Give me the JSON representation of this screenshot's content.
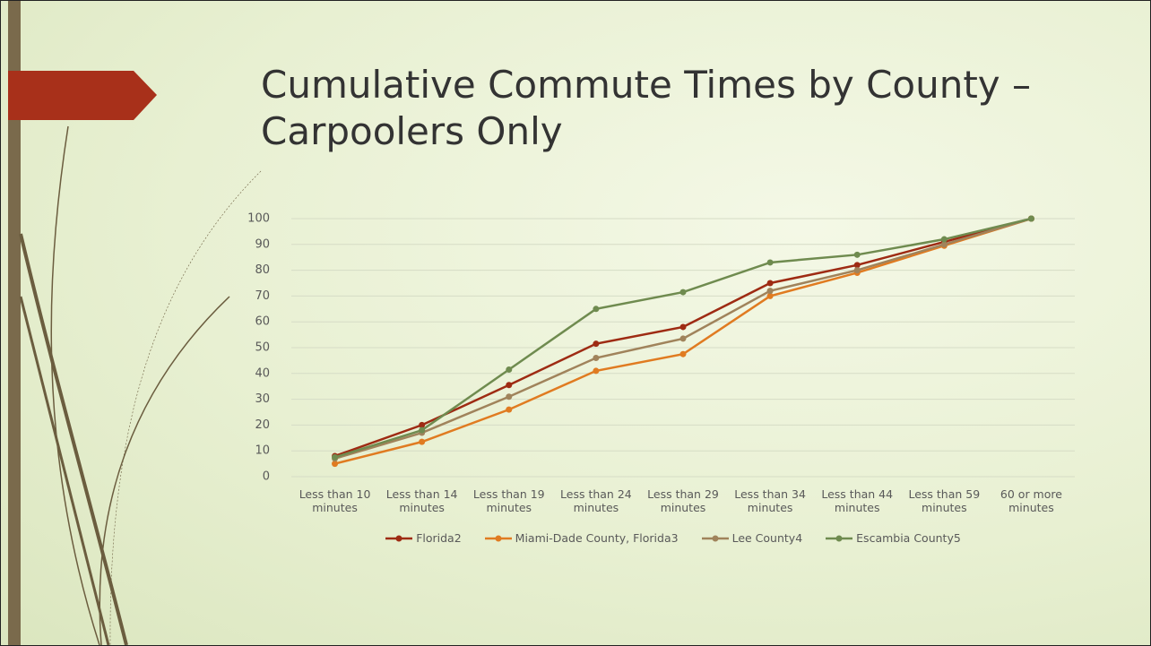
{
  "chart_data": {
    "type": "line",
    "title": "Cumulative Commute Times by County – Carpoolers Only",
    "categories": [
      "Less than 10 minutes",
      "Less than 14 minutes",
      "Less than 19 minutes",
      "Less than 24 minutes",
      "Less than 29 minutes",
      "Less than 34 minutes",
      "Less than 44 minutes",
      "Less than 59 minutes",
      "60 or more minutes"
    ],
    "series": [
      {
        "name": "Florida2",
        "color": "#9e2b13",
        "values": [
          8,
          20,
          35.5,
          51.5,
          58,
          75,
          82,
          91,
          100
        ]
      },
      {
        "name": "Miami-Dade County, Florida3",
        "color": "#e07b21",
        "values": [
          5,
          13.5,
          26,
          41,
          47.5,
          70,
          79,
          89.5,
          100
        ]
      },
      {
        "name": "Lee County4",
        "color": "#a0835b",
        "values": [
          7,
          17,
          31,
          46,
          53.5,
          72,
          80,
          90,
          100
        ]
      },
      {
        "name": "Escambia County5",
        "color": "#6f8b4f",
        "values": [
          7.5,
          18,
          41.5,
          65,
          71.5,
          83,
          86,
          92,
          100
        ]
      }
    ],
    "ylim": [
      0,
      100
    ],
    "yticks": [
      0,
      10,
      20,
      30,
      40,
      50,
      60,
      70,
      80,
      90,
      100
    ],
    "grid": true,
    "legend": "bottom"
  }
}
